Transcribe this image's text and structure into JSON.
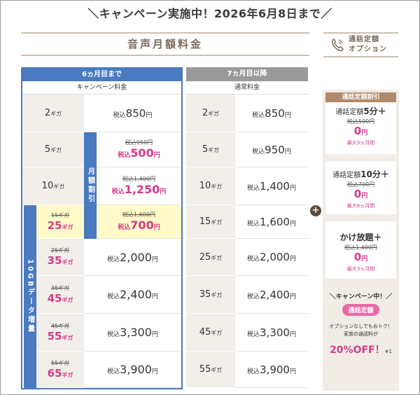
{
  "banner": "＼キャンペーン実施中！2026年6月8日まで／",
  "section_title": "音声月額料金",
  "option_title": [
    "通話定額",
    "オプション"
  ],
  "blue_header": "6ヵ月目まで",
  "blue_sub": "キャンペーン料金",
  "gray_header": "7ヵ月目以降",
  "gray_sub": "通常料金",
  "vertical_monthly": "月額割引",
  "vertical_data": "10GBデータ増量",
  "unit_giga": "ギガ",
  "tax_prefix": "税込",
  "yen": "円",
  "rows": [
    {
      "giga": "2",
      "old_giga": "",
      "camp_old_price": "",
      "camp_price": "850",
      "regular_giga": "2",
      "regular_price": "850"
    },
    {
      "giga": "5",
      "old_giga": "",
      "camp_old_price": "税込950円",
      "camp_price": "500",
      "regular_giga": "5",
      "regular_price": "950"
    },
    {
      "giga": "10",
      "old_giga": "",
      "camp_old_price": "税込1,400円",
      "camp_price": "1,250",
      "regular_giga": "10",
      "regular_price": "1,400"
    },
    {
      "giga": "25",
      "old_giga": "15ギガ",
      "camp_old_price": "税込1,600円",
      "camp_price": "700",
      "regular_giga": "15",
      "regular_price": "1,600"
    },
    {
      "giga": "35",
      "old_giga": "25ギガ",
      "camp_old_price": "",
      "camp_price": "2,000",
      "regular_giga": "25",
      "regular_price": "2,000"
    },
    {
      "giga": "45",
      "old_giga": "35ギガ",
      "camp_old_price": "",
      "camp_price": "2,400",
      "regular_giga": "35",
      "regular_price": "2,400"
    },
    {
      "giga": "55",
      "old_giga": "45ギガ",
      "camp_old_price": "",
      "camp_price": "3,300",
      "regular_giga": "45",
      "regular_price": "3,300"
    },
    {
      "giga": "65",
      "old_giga": "55ギガ",
      "camp_old_price": "",
      "camp_price": "3,900",
      "regular_giga": "55",
      "regular_price": "3,900"
    }
  ],
  "options": {
    "discount_header": "通話定額割引",
    "cards": [
      {
        "name_prefix": "通話定額",
        "name_bold": "5分＋",
        "old": "税込500円",
        "price": "0",
        "max": "最大3ヵ月間"
      },
      {
        "name_prefix": "通話定額",
        "name_bold": "10分＋",
        "old": "税込700円",
        "price": "0",
        "max": "最大6ヵ月間"
      },
      {
        "name_prefix": "",
        "name_bold": "かけ放題＋",
        "old": "税込1,400円",
        "price": "0",
        "max": "最大3ヵ月間"
      }
    ],
    "campaign_label": "＼キャンペーン中！／",
    "campaign_pill": "通話定額",
    "campaign_note1": "オプションなしでもおトク！",
    "campaign_note2": "家族の通話料が",
    "campaign_off": "20%OFF！",
    "campaign_footnote": "※1"
  },
  "colors": {
    "blue": "#4a7ac0",
    "pink": "#d63a8a",
    "gray_header": "#9a9a9a",
    "highlight": "#fffac8",
    "brown": "#b08a6a"
  }
}
